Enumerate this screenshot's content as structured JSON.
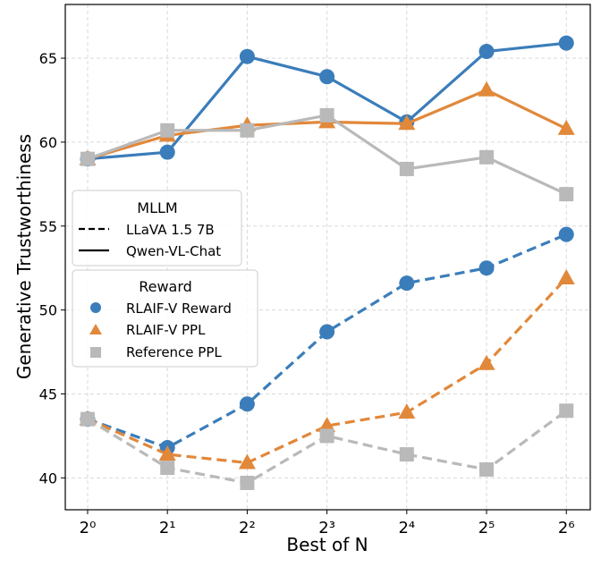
{
  "chart_data": {
    "type": "line",
    "xlabel": "Best of N",
    "ylabel": "Generative Trustworthiness",
    "x": [
      1,
      2,
      4,
      8,
      16,
      32,
      64
    ],
    "x_scale": "log2",
    "x_tick_labels": [
      "2⁰",
      "2¹",
      "2²",
      "2³",
      "2⁴",
      "2⁵",
      "2⁶"
    ],
    "y_ticks": [
      40,
      45,
      50,
      55,
      60,
      65
    ],
    "ylim": [
      38.1,
      68.2
    ],
    "grid": true,
    "colors": {
      "RLAIF-V Reward": "#3b7dba",
      "RLAIF-V PPL": "#e1883a",
      "Reference PPL": "#b9b9b9"
    },
    "legend_mllm": {
      "title": "MLLM",
      "entries": [
        {
          "label": "LLaVA 1.5 7B",
          "style": "dashed"
        },
        {
          "label": "Qwen-VL-Chat",
          "style": "solid"
        }
      ]
    },
    "legend_reward": {
      "title": "Reward",
      "entries": [
        {
          "label": "RLAIF-V Reward",
          "marker": "circle"
        },
        {
          "label": "RLAIF-V PPL",
          "marker": "triangle"
        },
        {
          "label": "Reference PPL",
          "marker": "square"
        }
      ]
    },
    "legend_placement": "center-left",
    "series": [
      {
        "mllm": "Qwen-VL-Chat",
        "reward": "RLAIF-V Reward",
        "values": [
          59.0,
          59.4,
          65.1,
          63.9,
          61.2,
          65.4,
          65.9
        ]
      },
      {
        "mllm": "Qwen-VL-Chat",
        "reward": "RLAIF-V PPL",
        "values": [
          59.0,
          60.4,
          61.0,
          61.2,
          61.1,
          63.1,
          60.8
        ]
      },
      {
        "mllm": "Qwen-VL-Chat",
        "reward": "Reference PPL",
        "values": [
          59.0,
          60.7,
          60.7,
          61.6,
          58.4,
          59.1,
          56.9
        ]
      },
      {
        "mllm": "LLaVA 1.5 7B",
        "reward": "RLAIF-V Reward",
        "values": [
          43.5,
          41.8,
          44.4,
          48.7,
          51.6,
          52.5,
          54.5
        ]
      },
      {
        "mllm": "LLaVA 1.5 7B",
        "reward": "RLAIF-V PPL",
        "values": [
          43.5,
          41.4,
          40.9,
          43.1,
          43.9,
          46.8,
          51.9
        ]
      },
      {
        "mllm": "LLaVA 1.5 7B",
        "reward": "Reference PPL",
        "values": [
          43.5,
          40.6,
          39.7,
          42.5,
          41.4,
          40.5,
          44.0
        ]
      }
    ]
  }
}
